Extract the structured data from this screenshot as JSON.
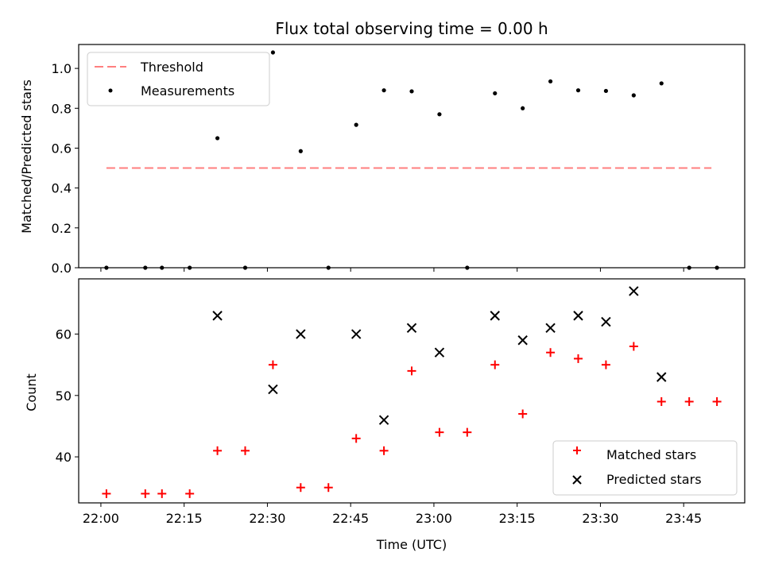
{
  "chart_data": [
    {
      "type": "scatter",
      "title": "Flux total observing time = 0.00 h",
      "xlabel": "",
      "ylabel": "Matched/Predicted stars",
      "ylim": [
        0,
        1.12
      ],
      "yticks": [
        "0.0",
        "0.2",
        "0.4",
        "0.6",
        "0.8",
        "1.0"
      ],
      "ytick_values": [
        0,
        0.2,
        0.4,
        0.6,
        0.8,
        1.0
      ],
      "legend_position": "top-left",
      "threshold": {
        "name": "Threshold",
        "y": 0.5,
        "x_start": "22:01",
        "x_end": "23:50",
        "color": "#ff7f7f"
      },
      "series": [
        {
          "name": "Measurements",
          "color": "#000000",
          "x": [
            "22:01",
            "22:08",
            "22:11",
            "22:16",
            "22:21",
            "22:26",
            "22:31",
            "22:36",
            "22:41",
            "22:46",
            "22:51",
            "22:56",
            "23:01",
            "23:06",
            "23:11",
            "23:16",
            "23:21",
            "23:26",
            "23:31",
            "23:36",
            "23:41",
            "23:46",
            "23:51"
          ],
          "values": [
            0,
            0,
            0,
            0,
            0.65,
            0,
            1.08,
            0.585,
            0,
            0.717,
            0.89,
            0.885,
            0.77,
            0,
            0.875,
            0.8,
            0.935,
            0.89,
            0.887,
            0.865,
            0.925,
            0,
            0
          ]
        }
      ]
    },
    {
      "type": "scatter",
      "title": "",
      "xlabel": "Time (UTC)",
      "ylabel": "Count",
      "ylim": [
        32.5,
        69.0
      ],
      "yticks": [
        "40",
        "50",
        "60"
      ],
      "ytick_values": [
        40,
        50,
        60
      ],
      "xlim": [
        "21:56",
        "23:56"
      ],
      "xticks": [
        "22:00",
        "22:15",
        "22:30",
        "22:45",
        "23:00",
        "23:15",
        "23:30",
        "23:45"
      ],
      "legend_position": "bottom-right",
      "series": [
        {
          "name": "Matched stars",
          "marker": "plus",
          "color": "#ff0000",
          "x": [
            "22:01",
            "22:08",
            "22:11",
            "22:16",
            "22:21",
            "22:26",
            "22:31",
            "22:36",
            "22:41",
            "22:46",
            "22:51",
            "22:56",
            "23:01",
            "23:06",
            "23:11",
            "23:16",
            "23:21",
            "23:26",
            "23:31",
            "23:36",
            "23:41",
            "23:46",
            "23:51"
          ],
          "values": [
            34,
            34,
            34,
            34,
            41,
            41,
            55,
            35,
            35,
            43,
            41,
            54,
            44,
            44,
            55,
            47,
            57,
            56,
            55,
            58,
            49,
            49,
            49
          ]
        },
        {
          "name": "Predicted stars",
          "marker": "x",
          "color": "#000000",
          "x": [
            "22:21",
            "22:31",
            "22:36",
            "22:46",
            "22:51",
            "22:56",
            "23:01",
            "23:11",
            "23:16",
            "23:21",
            "23:26",
            "23:31",
            "23:36",
            "23:41"
          ],
          "values": [
            63,
            51,
            60,
            60,
            46,
            61,
            57,
            63,
            59,
            61,
            63,
            62,
            67,
            53
          ]
        }
      ]
    }
  ]
}
